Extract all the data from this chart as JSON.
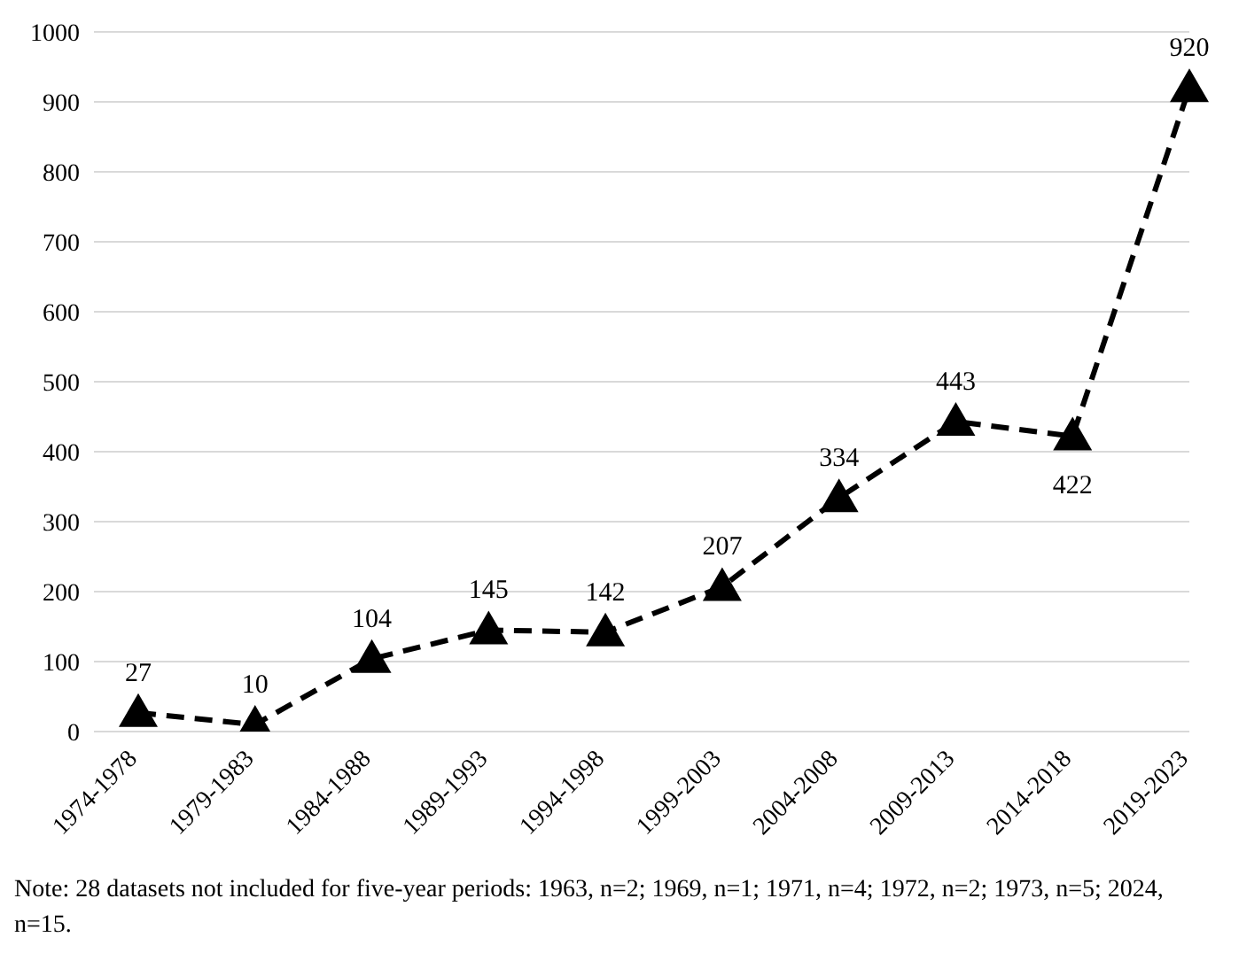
{
  "chart_data": {
    "type": "line",
    "categories": [
      "1974-1978",
      "1979-1983",
      "1984-1988",
      "1989-1993",
      "1994-1998",
      "1999-2003",
      "2004-2008",
      "2009-2013",
      "2014-2018",
      "2019-2023"
    ],
    "values": [
      27,
      10,
      104,
      145,
      142,
      207,
      334,
      443,
      422,
      920
    ],
    "color": "#000000",
    "marker": "triangle",
    "line_style": "dashed",
    "data_labels": true,
    "grid": "y",
    "ylim": [
      0,
      1000
    ],
    "yticks": [
      0,
      100,
      200,
      300,
      400,
      500,
      600,
      700,
      800,
      900,
      1000
    ],
    "annotations": [
      "Note: 28 datasets not included for five-year periods: 1963, n=2; 1969, n=1; 1971, n=4; 1972, n=2; 1973, n=5; 2024, n=15."
    ]
  }
}
